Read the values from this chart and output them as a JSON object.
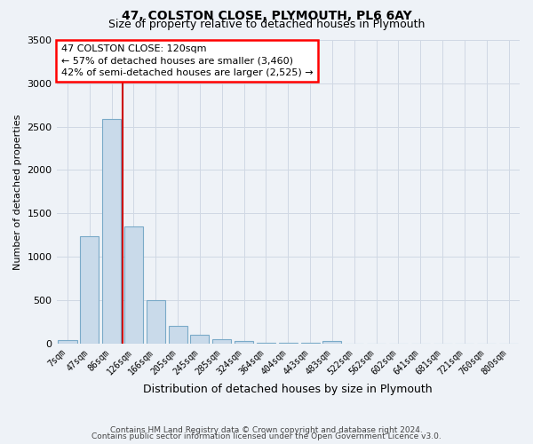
{
  "title": "47, COLSTON CLOSE, PLYMOUTH, PL6 6AY",
  "subtitle": "Size of property relative to detached houses in Plymouth",
  "xlabel": "Distribution of detached houses by size in Plymouth",
  "ylabel": "Number of detached properties",
  "bar_color": "#c9daea",
  "bar_edge_color": "#7aaac8",
  "vline_color": "#cc0000",
  "ylim": [
    0,
    3500
  ],
  "yticks": [
    0,
    500,
    1000,
    1500,
    2000,
    2500,
    3000,
    3500
  ],
  "categories": [
    "7sqm",
    "47sqm",
    "86sqm",
    "126sqm",
    "166sqm",
    "205sqm",
    "245sqm",
    "285sqm",
    "324sqm",
    "364sqm",
    "404sqm",
    "443sqm",
    "483sqm",
    "522sqm",
    "562sqm",
    "602sqm",
    "641sqm",
    "681sqm",
    "721sqm",
    "760sqm",
    "800sqm"
  ],
  "values": [
    40,
    1240,
    2590,
    1350,
    500,
    200,
    105,
    45,
    30,
    5,
    10,
    5,
    25,
    0,
    0,
    0,
    0,
    0,
    0,
    0,
    0
  ],
  "annotation_title": "47 COLSTON CLOSE: 120sqm",
  "annotation_line1": "← 57% of detached houses are smaller (3,460)",
  "annotation_line2": "42% of semi-detached houses are larger (2,525) →",
  "footnote1": "Contains HM Land Registry data © Crown copyright and database right 2024.",
  "footnote2": "Contains public sector information licensed under the Open Government Licence v3.0.",
  "background_color": "#eef2f7",
  "plot_background": "#eef2f7",
  "grid_color": "#d0d8e4"
}
